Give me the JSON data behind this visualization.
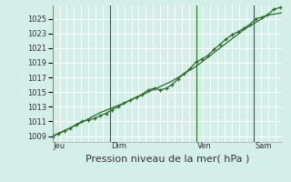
{
  "xlabel": "Pression niveau de la mer( hPa )",
  "bg_color": "#d4eee8",
  "grid_color": "#ffffff",
  "line_color": "#2d6a2d",
  "yticks": [
    1009,
    1011,
    1013,
    1015,
    1017,
    1019,
    1021,
    1023,
    1025
  ],
  "day_labels": [
    "Jeu",
    "Dim",
    "Ven",
    "Sam"
  ],
  "day_positions": [
    0.0,
    0.25,
    0.625,
    0.875
  ],
  "xlim": [
    0.0,
    1.0
  ],
  "ylim": [
    1008.2,
    1026.8
  ],
  "series1_x": [
    0.0,
    0.026,
    0.052,
    0.078,
    0.104,
    0.13,
    0.156,
    0.182,
    0.208,
    0.234,
    0.26,
    0.286,
    0.312,
    0.338,
    0.365,
    0.391,
    0.417,
    0.443,
    0.469,
    0.495,
    0.521,
    0.547,
    0.573,
    0.599,
    0.625,
    0.651,
    0.677,
    0.703,
    0.729,
    0.755,
    0.781,
    0.807,
    0.833,
    0.859,
    0.885,
    0.911,
    0.937,
    0.963,
    0.989
  ],
  "series1_y": [
    1009.0,
    1009.3,
    1009.7,
    1010.1,
    1010.6,
    1011.0,
    1011.2,
    1011.4,
    1011.8,
    1012.1,
    1012.6,
    1013.0,
    1013.5,
    1013.9,
    1014.3,
    1014.7,
    1015.3,
    1015.5,
    1015.3,
    1015.5,
    1016.0,
    1016.8,
    1017.5,
    1018.2,
    1019.1,
    1019.5,
    1020.0,
    1020.8,
    1021.5,
    1022.2,
    1022.8,
    1023.2,
    1023.7,
    1024.2,
    1025.0,
    1025.2,
    1025.5,
    1026.3,
    1026.5
  ],
  "series2_x": [
    0.0,
    0.104,
    0.208,
    0.312,
    0.417,
    0.521,
    0.625,
    0.729,
    0.833,
    0.937,
    1.0
  ],
  "series2_y": [
    1009.0,
    1010.5,
    1012.2,
    1013.5,
    1015.0,
    1016.5,
    1018.5,
    1021.0,
    1023.5,
    1025.5,
    1025.8
  ],
  "vline_color": "#2d6a2d",
  "xlabel_fontsize": 8,
  "tick_fontsize": 6,
  "label_color": "#333333"
}
